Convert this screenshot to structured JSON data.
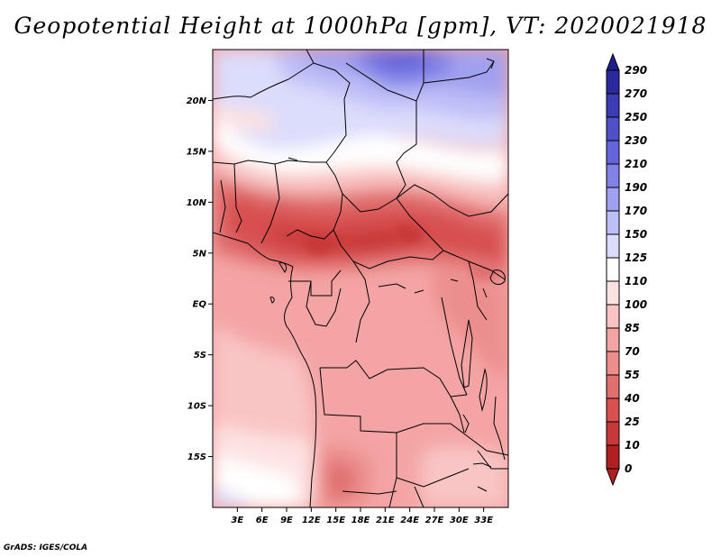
{
  "title": "Geopotential Height at 1000hPa [gpm], VT: 2020021918",
  "footer": "GrADS: IGES/COLA",
  "map": {
    "lon_range": [
      0,
      36
    ],
    "lat_range": [
      -20,
      25
    ],
    "lat_ticks": [
      {
        "value": 20,
        "label": "20N"
      },
      {
        "value": 15,
        "label": "15N"
      },
      {
        "value": 10,
        "label": "10N"
      },
      {
        "value": 5,
        "label": "5N"
      },
      {
        "value": 0,
        "label": "EQ"
      },
      {
        "value": -5,
        "label": "5S"
      },
      {
        "value": -10,
        "label": "10S"
      },
      {
        "value": -15,
        "label": "15S"
      }
    ],
    "lon_ticks": [
      {
        "value": 3,
        "label": "3E"
      },
      {
        "value": 6,
        "label": "6E"
      },
      {
        "value": 9,
        "label": "9E"
      },
      {
        "value": 12,
        "label": "12E"
      },
      {
        "value": 15,
        "label": "15E"
      },
      {
        "value": 18,
        "label": "18E"
      },
      {
        "value": 21,
        "label": "21E"
      },
      {
        "value": 24,
        "label": "24E"
      },
      {
        "value": 27,
        "label": "27E"
      },
      {
        "value": 30,
        "label": "30E"
      },
      {
        "value": 33,
        "label": "33E"
      }
    ]
  },
  "colorbar": {
    "levels": [
      {
        "label": "290",
        "color": "#1e1e8c"
      },
      {
        "label": "270",
        "color": "#2a2a9e"
      },
      {
        "label": "250",
        "color": "#3c3cb4"
      },
      {
        "label": "230",
        "color": "#5050c8"
      },
      {
        "label": "210",
        "color": "#6464dc"
      },
      {
        "label": "190",
        "color": "#8282e6"
      },
      {
        "label": "170",
        "color": "#a0a0f0"
      },
      {
        "label": "150",
        "color": "#bebef8"
      },
      {
        "label": "125",
        "color": "#dcdcfc"
      },
      {
        "label": "110",
        "color": "#ffffff"
      },
      {
        "label": "100",
        "color": "#fde2e2"
      },
      {
        "label": "85",
        "color": "#f9c4c4"
      },
      {
        "label": "70",
        "color": "#f4a4a4"
      },
      {
        "label": "55",
        "color": "#ec8e8e"
      },
      {
        "label": "40",
        "color": "#e07070"
      },
      {
        "label": "25",
        "color": "#d85050"
      },
      {
        "label": "10",
        "color": "#c83838"
      },
      {
        "label": "0",
        "color": "#b02020"
      }
    ]
  }
}
